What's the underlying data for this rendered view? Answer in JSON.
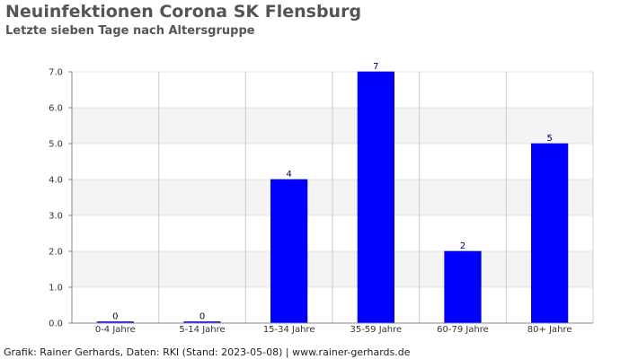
{
  "chart_data": {
    "type": "bar",
    "title": "Neuinfektionen Corona SK Flensburg",
    "subtitle": "Letzte sieben Tage nach Altersgruppe",
    "categories": [
      "0-4 Jahre",
      "5-14 Jahre",
      "15-34 Jahre",
      "35-59 Jahre",
      "60-79 Jahre",
      "80+ Jahre"
    ],
    "values": [
      0,
      0,
      4,
      7,
      2,
      5
    ],
    "ylim": [
      0,
      7
    ],
    "yticks": [
      "0.0",
      "1.0",
      "2.0",
      "3.0",
      "4.0",
      "5.0",
      "6.0",
      "7.0"
    ],
    "xlabel": "",
    "ylabel": "",
    "grid": true,
    "bar_color": "#0000ff",
    "label_color": "#000066"
  },
  "footer": "Grafik: Rainer Gerhards, Daten: RKI (Stand: 2023-05-08) | www.rainer-gerhards.de"
}
